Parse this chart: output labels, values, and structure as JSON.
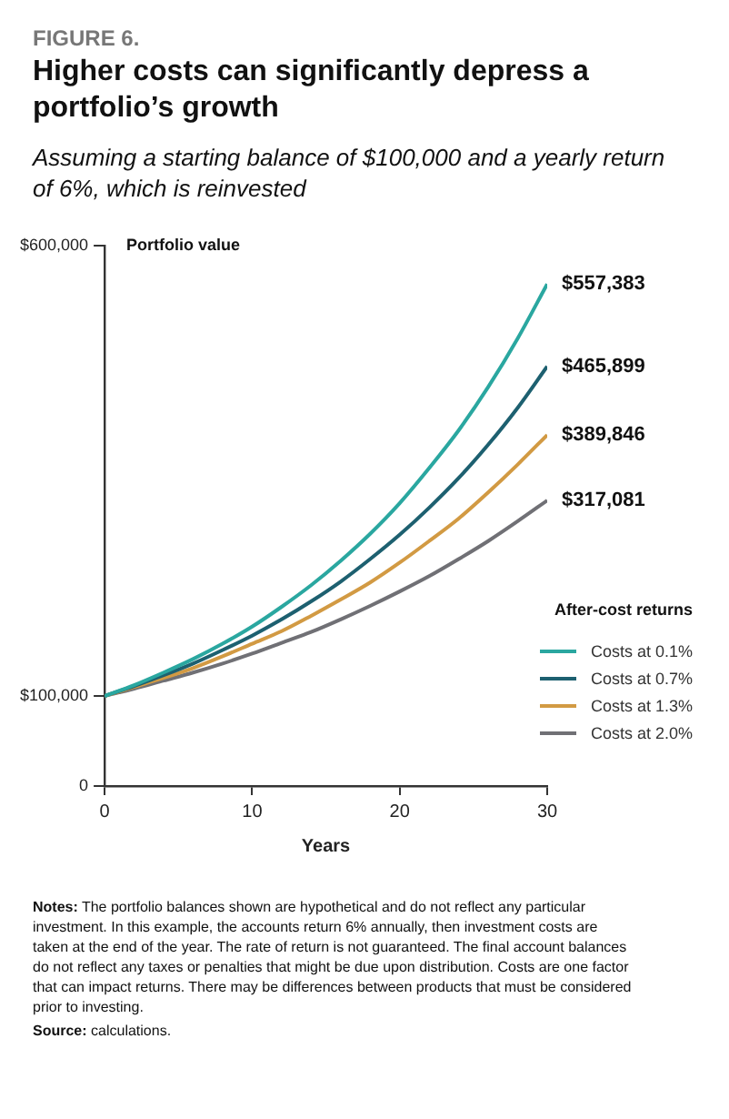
{
  "chart_data": {
    "type": "line",
    "title": "Higher costs can significantly depress a portfolio’s growth",
    "subtitle": "Assuming a starting balance of $100,000 and a yearly return of 6%, which is reinvested",
    "ylabel": "Portfolio value",
    "xlabel": "Years",
    "legend_title": "After-cost returns",
    "legend": "right",
    "marker": "none",
    "line_style": "solid",
    "annotations": [
      "FIGURE 6.",
      "Notes: The portfolio balances shown are hypothetical and do not reflect any particular investment. In this example, the accounts return 6% annually, then investment costs are taken at the end of the year. The rate of return is not guaranteed. The final account balances do not reflect any taxes or penalties that might be due upon distribution. Costs are one factor that can impact returns. There may be differences between products that must be considered prior to investing.",
      "Source: calculations."
    ],
    "x": [
      0,
      2,
      4,
      6,
      8,
      10,
      12,
      14,
      16,
      18,
      20,
      22,
      24,
      26,
      28,
      30
    ],
    "xlim": [
      0,
      30
    ],
    "xticks": [
      0,
      10,
      20,
      30
    ],
    "ylim": [
      0,
      600000
    ],
    "yticks": [
      {
        "value": 0,
        "label": "0"
      },
      {
        "value": 100000,
        "label": "$100,000"
      },
      {
        "value": 600000,
        "label": "$600,000"
      }
    ],
    "series": [
      {
        "name": "Costs at 0.1%",
        "color": "#2aa7a0",
        "values": [
          100000,
          112000,
          126000,
          141000,
          158000,
          177000,
          199000,
          223000,
          250000,
          280000,
          314000,
          353000,
          395000,
          443000,
          497000,
          557383
        ],
        "value_labels": [
          null,
          null,
          null,
          null,
          null,
          null,
          null,
          null,
          null,
          null,
          null,
          null,
          null,
          null,
          null,
          "$557,383"
        ]
      },
      {
        "name": "Costs at 0.7%",
        "color": "#1d6070",
        "values": [
          100000,
          111000,
          123000,
          136000,
          151000,
          167000,
          185000,
          205000,
          227000,
          252000,
          279000,
          309000,
          342000,
          379000,
          420000,
          465899
        ],
        "value_labels": [
          null,
          null,
          null,
          null,
          null,
          null,
          null,
          null,
          null,
          null,
          null,
          null,
          null,
          null,
          null,
          "$465,899"
        ]
      },
      {
        "name": "Costs at 1.3%",
        "color": "#d29a43",
        "values": [
          100000,
          110000,
          120000,
          131000,
          144000,
          158000,
          172000,
          189000,
          207000,
          226000,
          248000,
          272000,
          297000,
          326000,
          357000,
          389846
        ],
        "value_labels": [
          null,
          null,
          null,
          null,
          null,
          null,
          null,
          null,
          null,
          null,
          null,
          null,
          null,
          null,
          null,
          "$389,846"
        ]
      },
      {
        "name": "Costs at 2.0%",
        "color": "#707075",
        "values": [
          100000,
          108000,
          117000,
          126000,
          136000,
          147000,
          159000,
          171000,
          185000,
          200000,
          216000,
          233000,
          252000,
          272000,
          294000,
          317081
        ],
        "value_labels": [
          null,
          null,
          null,
          null,
          null,
          null,
          null,
          null,
          null,
          null,
          null,
          null,
          null,
          null,
          null,
          "$317,081"
        ]
      }
    ]
  }
}
